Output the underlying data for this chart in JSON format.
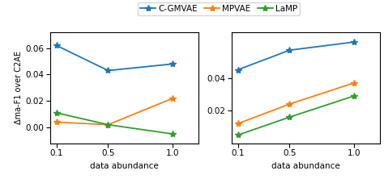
{
  "x": [
    0.1,
    0.5,
    1.0
  ],
  "left": {
    "cgmvae": [
      0.062,
      0.043,
      0.048
    ],
    "mpvae": [
      0.004,
      0.002,
      0.022
    ],
    "lamp": [
      0.011,
      0.002,
      -0.005
    ]
  },
  "right": {
    "cgmvae": [
      0.045,
      0.057,
      0.062
    ],
    "mpvae": [
      0.012,
      0.024,
      0.037
    ],
    "lamp": [
      0.005,
      0.016,
      0.029
    ]
  },
  "colors": {
    "cgmvae": "#1f77b4",
    "mpvae": "#ff7f0e",
    "lamp": "#2ca02c"
  },
  "labels": {
    "cgmvae": "C-GMVAE",
    "mpvae": "MPVAE",
    "lamp": "LaMP"
  },
  "ylabel": "Δma-F1 over C2AE",
  "xlabel": "data abundance",
  "left_ylim": [
    -0.012,
    0.072
  ],
  "right_ylim": [
    0.0,
    0.068
  ],
  "left_yticks": [
    0.0,
    0.02,
    0.04,
    0.06
  ],
  "right_yticks": [
    0.02,
    0.04
  ],
  "xticks": [
    0.1,
    0.5,
    1.0
  ],
  "xticklabels": [
    "0.1",
    "0.5",
    "1.0"
  ],
  "marker": "*",
  "markersize": 6,
  "linewidth": 1.3,
  "fontsize": 7.5
}
